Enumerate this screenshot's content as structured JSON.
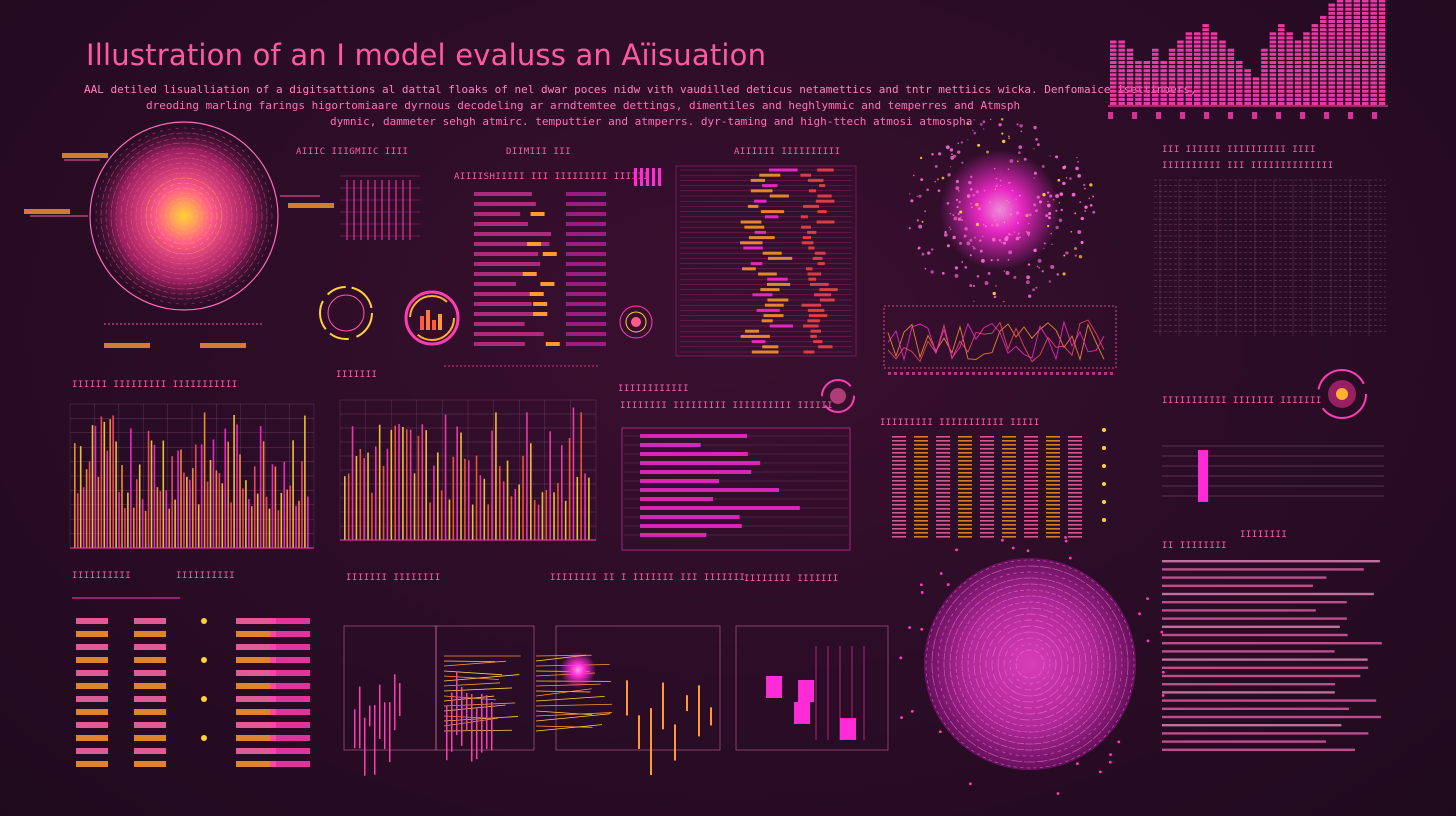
{
  "header": {
    "title": "Illustration of an I model evaluss an Aïisuation",
    "subtitle_line1": "AAL detiled lisualliation of a digitsattions  al dattal floaks of nel dwar poces nidw vith vaudilled deticus netamettics and tntr mettiics wicka. Denfomaice isettinoers,",
    "subtitle_line2": "dreoding marling farings higortomiaare dyrnous decodeling ar arndtemtee dettings, dimentiles and heghlymmic and temperres and Atmsph",
    "subtitle_line3": "dymnic, dammeter sehgh atmirc. temputtier and atmperrs.  dyr-taming and high-ttech atmosi atmospha"
  },
  "panel_labels": {
    "p1": "AIIIC IIIGMIIC IIII",
    "p2": "DIIMIII III",
    "p3": "AIIIISHIIIII III IIIIIIIII IIIIII",
    "p4": "AIIIIII IIIIIIIIII",
    "p5": "III IIIIII  IIIIIIIIII IIII",
    "p6": "IIIIIIIIII III IIIIIIIIIIIIII",
    "p7": "IIIIII IIIIIIIII IIIIIIIIIII",
    "p8": "IIIIIII",
    "p9": "IIIIIIIIIIII",
    "p10": "IIIIIIII IIIIIIIII IIIIIIIIII IIIIII",
    "p11": "IIIIIIIII   IIIIIIIIIII IIIII",
    "p12": "IIIIIIIIIII IIIIIII IIIIIII",
    "p13": "IIIIIIIIII",
    "p14": "IIIIIIIIII",
    "p15": "IIIIIII IIIIIIII",
    "p16": "IIIIIIII II I IIIIIII   III IIIIIII",
    "p17": "IIIIIIII IIIIIII",
    "p18": "IIIIIIII",
    "p19": "II IIIIIIII"
  },
  "colors": {
    "accent_pink": "#ff3db3",
    "accent_magenta": "#ff2bd6",
    "accent_orange": "#ff9a2e",
    "accent_yellow": "#ffd23a",
    "background": "#2a0c26"
  }
}
